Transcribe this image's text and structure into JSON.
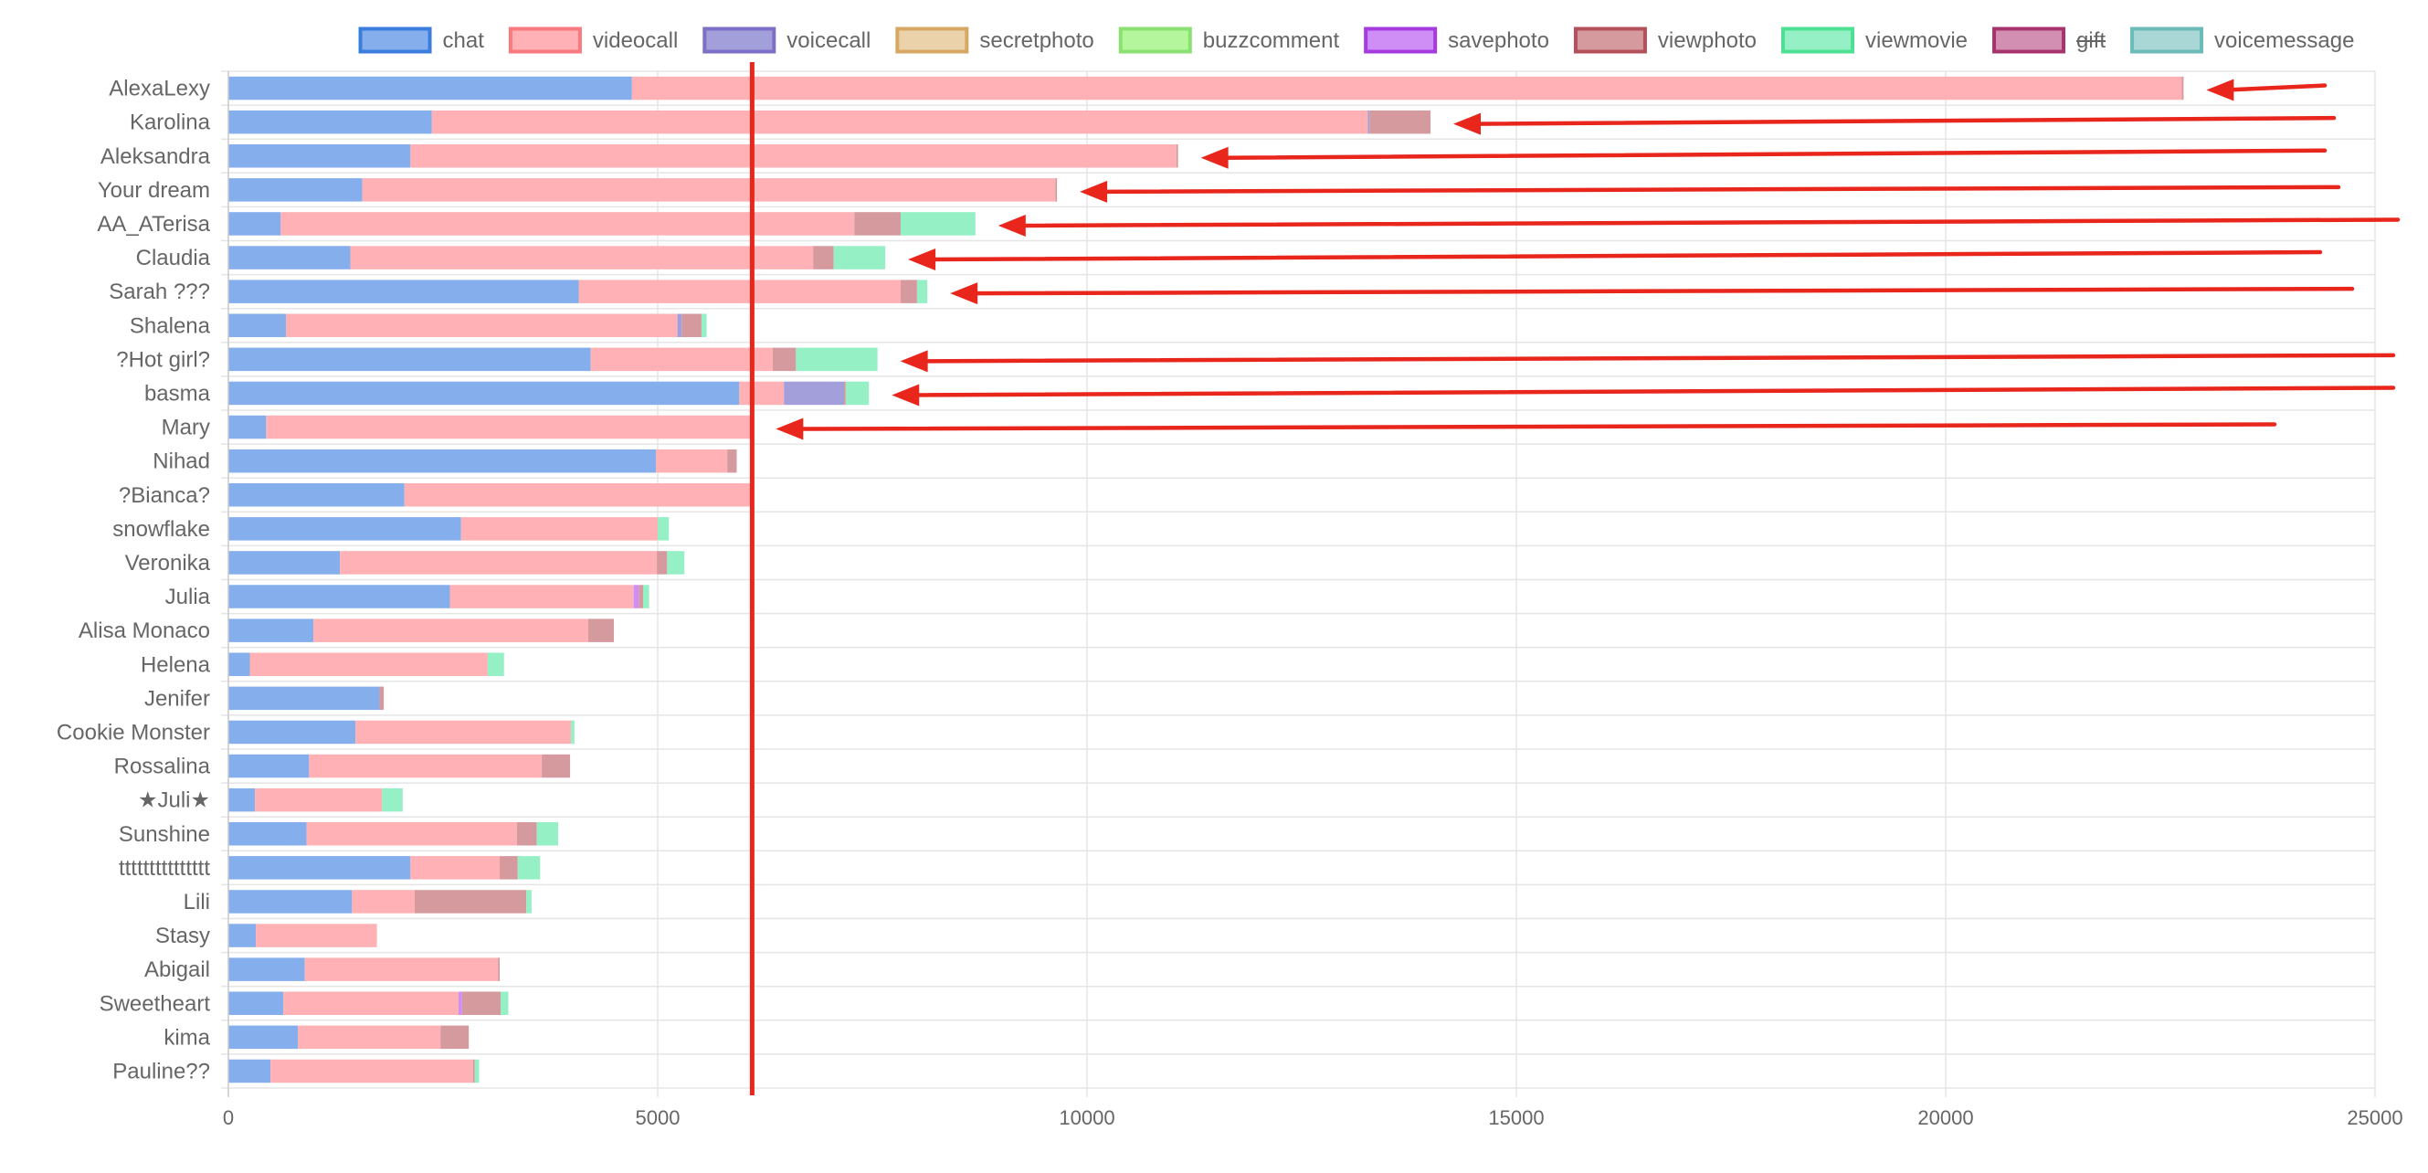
{
  "chart_data": {
    "type": "bar",
    "orientation": "horizontal",
    "stacked": true,
    "legend_position": "top",
    "grid": true,
    "xlim": [
      0,
      25000
    ],
    "xticks": [
      0,
      5000,
      10000,
      15000,
      20000,
      25000
    ],
    "xtick_labels": [
      "0",
      "5000",
      "10000",
      "15000",
      "20000",
      "25000"
    ],
    "reference_line_x": 6100,
    "reference_line_color": "#e8261c",
    "arrow_color": "#e8261c",
    "arrow_rows": [
      0,
      1,
      2,
      3,
      4,
      5,
      6,
      8,
      9,
      10
    ],
    "categories": [
      "AlexaLexy",
      "Karolina",
      "Aleksandra",
      "Your dream",
      "AA_ATerisa",
      "Claudia",
      "Sarah ???",
      "Shalena",
      "?Hot girl?",
      "basma",
      "Mary",
      "Nihad",
      "?Bianca?",
      "snowflake",
      "Veronika",
      "Julia",
      "Alisa Monaco",
      "Helena",
      "Jenifer",
      "Cookie Monster",
      "Rossalina",
      "★Juli★",
      "Sunshine",
      "ttttttttttttttt",
      "Lili",
      "Stasy",
      "Abigail",
      "Sweetheart",
      "kima",
      "Pauline??"
    ],
    "series": [
      {
        "name": "chat",
        "fill": "#84aeec",
        "border": "#3b7ddd",
        "hidden": false,
        "values": [
          4700,
          2370,
          2120,
          1560,
          610,
          1420,
          4080,
          670,
          4220,
          5950,
          440,
          4980,
          2050,
          2710,
          1300,
          2580,
          990,
          250,
          1760,
          1480,
          940,
          310,
          910,
          2120,
          1440,
          320,
          890,
          640,
          810,
          490
        ]
      },
      {
        "name": "videocall",
        "fill": "#ffb1b5",
        "border": "#f8797f",
        "hidden": false,
        "values": [
          18050,
          10900,
          8920,
          8070,
          6680,
          5390,
          3750,
          4560,
          2120,
          520,
          5670,
          830,
          4030,
          2290,
          3690,
          2140,
          3200,
          2770,
          0,
          2510,
          2710,
          1480,
          2450,
          1040,
          730,
          1410,
          2250,
          2040,
          1660,
          2360
        ]
      },
      {
        "name": "voicecall",
        "fill": "#a39fdb",
        "border": "#7e6fc8",
        "hidden": false,
        "values": [
          0,
          20,
          0,
          0,
          0,
          0,
          0,
          50,
          0,
          700,
          0,
          0,
          0,
          0,
          0,
          0,
          0,
          0,
          0,
          0,
          0,
          0,
          0,
          0,
          0,
          0,
          0,
          0,
          0,
          0
        ]
      },
      {
        "name": "secretphoto",
        "fill": "#ecd2ab",
        "border": "#d6a864",
        "hidden": false,
        "values": [
          0,
          0,
          0,
          0,
          0,
          0,
          0,
          0,
          0,
          0,
          0,
          0,
          0,
          0,
          0,
          0,
          0,
          0,
          0,
          0,
          0,
          0,
          0,
          0,
          0,
          0,
          0,
          0,
          0,
          0
        ]
      },
      {
        "name": "buzzcomment",
        "fill": "#b4f69c",
        "border": "#8be072",
        "hidden": false,
        "values": [
          0,
          0,
          0,
          0,
          0,
          0,
          0,
          0,
          0,
          0,
          0,
          0,
          0,
          0,
          0,
          0,
          0,
          0,
          0,
          0,
          0,
          0,
          0,
          0,
          0,
          0,
          0,
          0,
          0,
          0
        ]
      },
      {
        "name": "savephoto",
        "fill": "#cf8ef5",
        "border": "#a43ae0",
        "hidden": false,
        "values": [
          0,
          0,
          0,
          0,
          0,
          0,
          0,
          0,
          0,
          0,
          0,
          0,
          0,
          0,
          0,
          60,
          0,
          0,
          0,
          0,
          0,
          0,
          0,
          0,
          0,
          0,
          0,
          40,
          0,
          0
        ]
      },
      {
        "name": "viewphoto",
        "fill": "#d49a9e",
        "border": "#b3515b",
        "hidden": false,
        "values": [
          20,
          710,
          20,
          20,
          540,
          240,
          190,
          230,
          270,
          20,
          0,
          110,
          0,
          0,
          120,
          50,
          300,
          0,
          50,
          0,
          330,
          0,
          230,
          210,
          1300,
          0,
          20,
          450,
          330,
          20
        ]
      },
      {
        "name": "viewmovie",
        "fill": "#95f0c5",
        "border": "#4ee193",
        "hidden": false,
        "values": [
          0,
          0,
          0,
          0,
          870,
          600,
          120,
          60,
          950,
          270,
          0,
          0,
          0,
          130,
          200,
          70,
          0,
          190,
          0,
          40,
          0,
          240,
          250,
          260,
          60,
          0,
          0,
          90,
          0,
          50
        ]
      },
      {
        "name": "gift",
        "fill": "#d38fb1",
        "border": "#a8346f",
        "hidden": true,
        "values": [
          0,
          0,
          0,
          0,
          0,
          0,
          0,
          0,
          0,
          0,
          0,
          0,
          0,
          0,
          0,
          0,
          0,
          0,
          0,
          0,
          0,
          0,
          0,
          0,
          0,
          0,
          0,
          0,
          0,
          0
        ]
      },
      {
        "name": "voicemessage",
        "fill": "#a9d7d5",
        "border": "#6cbbb8",
        "hidden": false,
        "values": [
          0,
          0,
          0,
          0,
          0,
          0,
          0,
          0,
          0,
          0,
          0,
          0,
          0,
          0,
          0,
          0,
          0,
          0,
          0,
          0,
          0,
          0,
          0,
          0,
          0,
          0,
          0,
          0,
          0,
          0
        ]
      }
    ]
  }
}
